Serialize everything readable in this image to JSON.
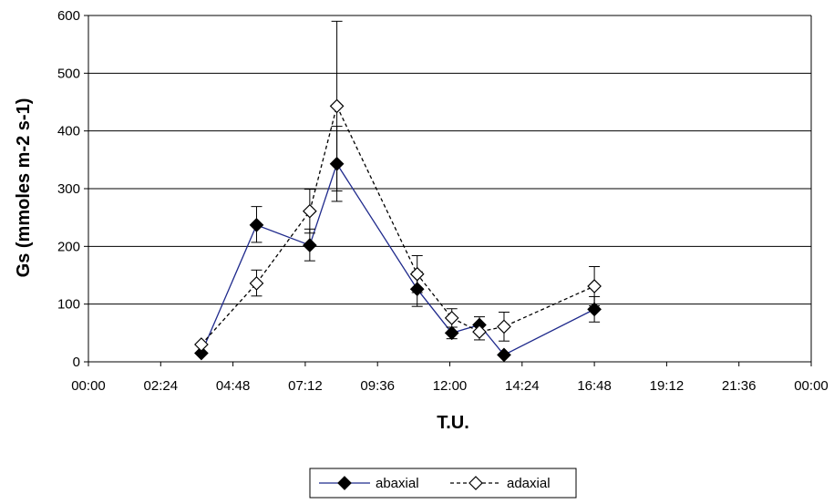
{
  "chart_data": {
    "type": "line",
    "title": "",
    "xlabel": "T.U.",
    "ylabel": "Gs (mmoles m-2 s-1)",
    "xlim": [
      "00:00",
      "24:00"
    ],
    "ylim": [
      0,
      600
    ],
    "x_tick_labels": [
      "00:00",
      "02:24",
      "04:48",
      "07:12",
      "09:36",
      "12:00",
      "14:24",
      "16:48",
      "19:12",
      "21:36",
      "00:00"
    ],
    "y_ticks": [
      "0",
      "100",
      "200",
      "300",
      "400",
      "500",
      "600"
    ],
    "grid": "horizontal",
    "legend_position": "bottom",
    "series": [
      {
        "name": "abaxial",
        "color": "#1f2a8c",
        "marker": "diamond-filled",
        "line_style": "solid",
        "points": [
          {
            "x": "03:45",
            "y": 15,
            "err_low": 0,
            "err_high": 0
          },
          {
            "x": "05:35",
            "y": 237,
            "err_low": 30,
            "err_high": 32
          },
          {
            "x": "07:21",
            "y": 202,
            "err_low": 27,
            "err_high": 28
          },
          {
            "x": "08:15",
            "y": 343,
            "err_low": 65,
            "err_high": 65
          },
          {
            "x": "10:55",
            "y": 126,
            "err_low": 30,
            "err_high": 30
          },
          {
            "x": "12:04",
            "y": 50,
            "err_low": 10,
            "err_high": 10
          },
          {
            "x": "12:59",
            "y": 64,
            "err_low": 14,
            "err_high": 14
          },
          {
            "x": "13:48",
            "y": 12,
            "err_low": 0,
            "err_high": 0
          },
          {
            "x": "16:48",
            "y": 91,
            "err_low": 22,
            "err_high": 22
          }
        ]
      },
      {
        "name": "adaxial",
        "color": "#000000",
        "marker": "diamond-open",
        "line_style": "dashed",
        "points": [
          {
            "x": "03:45",
            "y": 30,
            "err_low": 0,
            "err_high": 0
          },
          {
            "x": "05:35",
            "y": 136,
            "err_low": 22,
            "err_high": 23
          },
          {
            "x": "07:21",
            "y": 261,
            "err_low": 38,
            "err_high": 38
          },
          {
            "x": "08:15",
            "y": 443,
            "err_low": 147,
            "err_high": 147
          },
          {
            "x": "10:55",
            "y": 152,
            "err_low": 32,
            "err_high": 32
          },
          {
            "x": "12:04",
            "y": 76,
            "err_low": 16,
            "err_high": 16
          },
          {
            "x": "12:59",
            "y": 52,
            "err_low": 14,
            "err_high": 14
          },
          {
            "x": "13:48",
            "y": 61,
            "err_low": 25,
            "err_high": 25
          },
          {
            "x": "16:48",
            "y": 131,
            "err_low": 34,
            "err_high": 34
          }
        ]
      }
    ]
  }
}
